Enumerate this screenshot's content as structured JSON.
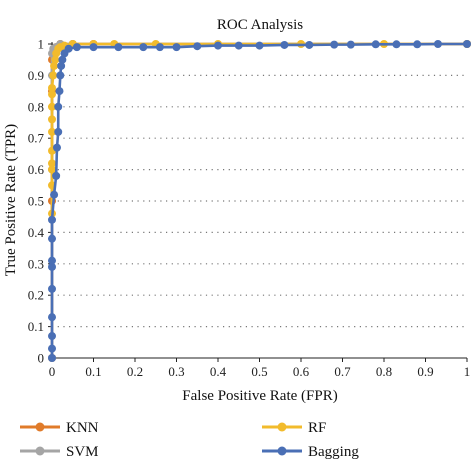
{
  "chart_data": {
    "type": "line",
    "title": "ROC Analysis",
    "xlabel": "False Positive Rate (FPR)",
    "ylabel": "True Positive Rate (TPR)",
    "xlim": [
      0,
      1
    ],
    "ylim": [
      0,
      1
    ],
    "x_ticks": [
      "0",
      "0.1",
      "0.2",
      "0.3",
      "0.4",
      "0.5",
      "0.6",
      "0.7",
      "0.8",
      "0.9",
      "1"
    ],
    "y_ticks": [
      "0",
      "0.1",
      "0.2",
      "0.3",
      "0.4",
      "0.5",
      "0.6",
      "0.7",
      "0.8",
      "0.9",
      "1"
    ],
    "grid": "dotted horizontal",
    "legend_position": "bottom",
    "series": [
      {
        "name": "KNN",
        "color": "#e07b2a",
        "points": [
          [
            0,
            0
          ],
          [
            0,
            0.5
          ],
          [
            0,
            0.85
          ],
          [
            0,
            0.95
          ],
          [
            0.005,
            0.98
          ],
          [
            0.01,
            0.99
          ],
          [
            0.02,
            1
          ],
          [
            0.05,
            1
          ],
          [
            0.1,
            1
          ],
          [
            1,
            1
          ]
        ]
      },
      {
        "name": "SVM",
        "color": "#a5a5a5",
        "points": [
          [
            0,
            0
          ],
          [
            0,
            0.6
          ],
          [
            0,
            0.9
          ],
          [
            0,
            0.97
          ],
          [
            0.003,
            0.985
          ],
          [
            0.01,
            0.99
          ],
          [
            0.02,
            1
          ],
          [
            0.05,
            1
          ],
          [
            1,
            1
          ]
        ]
      },
      {
        "name": "RF",
        "color": "#f2bb2c",
        "points": [
          [
            0,
            0.46
          ],
          [
            0,
            0.55
          ],
          [
            0,
            0.6
          ],
          [
            0,
            0.62
          ],
          [
            0,
            0.66
          ],
          [
            0,
            0.72
          ],
          [
            0,
            0.76
          ],
          [
            0,
            0.8
          ],
          [
            0,
            0.84
          ],
          [
            0,
            0.86
          ],
          [
            0.003,
            0.9
          ],
          [
            0.005,
            0.93
          ],
          [
            0.008,
            0.95
          ],
          [
            0.01,
            0.97
          ],
          [
            0.015,
            0.985
          ],
          [
            0.02,
            0.99
          ],
          [
            0.03,
            0.995
          ],
          [
            0.05,
            1
          ],
          [
            0.1,
            1
          ],
          [
            0.15,
            1
          ],
          [
            0.25,
            1
          ],
          [
            0.4,
            1
          ],
          [
            0.6,
            1
          ],
          [
            0.8,
            1
          ],
          [
            1,
            1
          ]
        ]
      },
      {
        "name": "Bagging",
        "color": "#4a6fb5",
        "points": [
          [
            0,
            0
          ],
          [
            0,
            0.03
          ],
          [
            0,
            0.07
          ],
          [
            0,
            0.13
          ],
          [
            0,
            0.22
          ],
          [
            0,
            0.29
          ],
          [
            0,
            0.31
          ],
          [
            0,
            0.38
          ],
          [
            0,
            0.44
          ],
          [
            0.005,
            0.52
          ],
          [
            0.01,
            0.58
          ],
          [
            0.012,
            0.67
          ],
          [
            0.015,
            0.72
          ],
          [
            0.015,
            0.8
          ],
          [
            0.018,
            0.85
          ],
          [
            0.02,
            0.9
          ],
          [
            0.022,
            0.93
          ],
          [
            0.025,
            0.95
          ],
          [
            0.03,
            0.97
          ],
          [
            0.04,
            0.985
          ],
          [
            0.06,
            0.99
          ],
          [
            0.1,
            0.99
          ],
          [
            0.16,
            0.99
          ],
          [
            0.22,
            0.99
          ],
          [
            0.26,
            0.99
          ],
          [
            0.3,
            0.99
          ],
          [
            0.35,
            0.993
          ],
          [
            0.4,
            0.995
          ],
          [
            0.45,
            0.995
          ],
          [
            0.5,
            0.995
          ],
          [
            0.56,
            0.997
          ],
          [
            0.62,
            0.997
          ],
          [
            0.68,
            0.998
          ],
          [
            0.72,
            0.998
          ],
          [
            0.78,
            0.999
          ],
          [
            0.83,
            0.999
          ],
          [
            0.88,
            0.999
          ],
          [
            0.93,
            1
          ],
          [
            1,
            1
          ]
        ]
      }
    ]
  }
}
